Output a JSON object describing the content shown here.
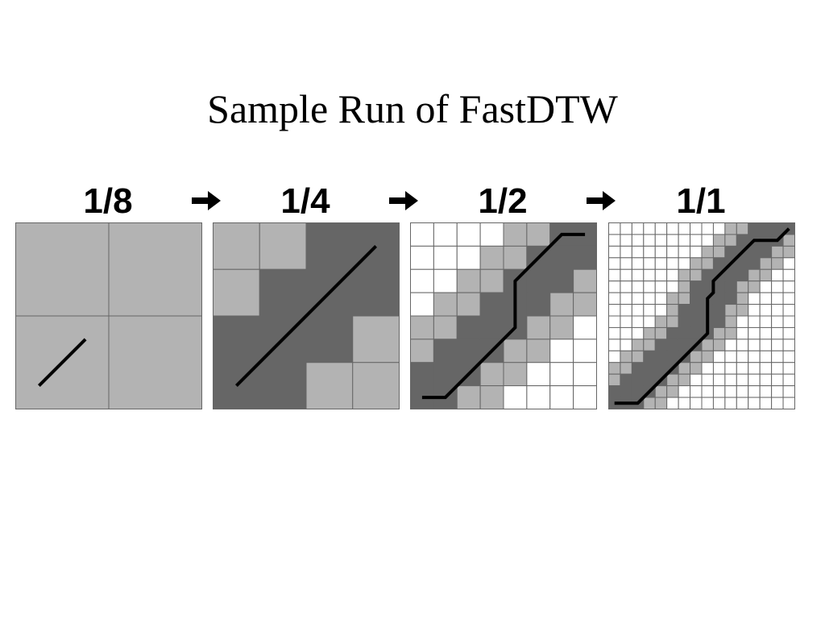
{
  "title": "Sample Run of FastDTW",
  "colors": {
    "background": "#ffffff",
    "grid_line": "#666666",
    "light_cell": "#b3b3b3",
    "dark_cell": "#666666",
    "empty_cell": "#ffffff",
    "path": "#000000"
  },
  "arrow_icon": "right-arrow-icon",
  "panels": [
    {
      "label": "1/8",
      "grid": 2,
      "cells": [
        "LL",
        "LL"
      ],
      "path": [
        [
          0.25,
          0.25
        ],
        [
          0.75,
          0.75
        ]
      ]
    },
    {
      "label": "1/4",
      "grid": 4,
      "cells": [
        "LLDD",
        "LDDD",
        "DDDL",
        "DDLL"
      ],
      "path": [
        [
          0.5,
          0.5
        ],
        [
          3.5,
          3.5
        ]
      ]
    },
    {
      "label": "1/2",
      "grid": 8,
      "cells": [
        "....LLDD",
        "...LLDDD",
        "..LLDDDL",
        ".LLDDDLL",
        "LLDDDLL.",
        "LDDDLL..",
        "DDDLL...",
        "DDLL...."
      ],
      "path": [
        [
          0.5,
          0.5
        ],
        [
          1.5,
          0.5
        ],
        [
          4.5,
          3.5
        ],
        [
          4.5,
          5.5
        ],
        [
          6.5,
          7.5
        ],
        [
          7.5,
          7.5
        ]
      ]
    },
    {
      "label": "1/1",
      "grid": 16,
      "cells": [
        "..........LLDDDD",
        ".........LLDDDDL",
        "........LLDDDDLL",
        ".......LLDDDDLL.",
        "......LLDDDDLL..",
        "......LDDDDLL...",
        ".....LLDDDDL....",
        ".....LDDDDLL....",
        "....LLDDDDL.....",
        "...LLDDDDLL.....",
        "..LLDDDDLL......",
        ".LLDDDDLL.......",
        "LLDDDDLL........",
        "LDDDDLL.........",
        "DDDDLL..........",
        "DDDLL..........."
      ],
      "path": [
        [
          0.5,
          0.5
        ],
        [
          2.5,
          0.5
        ],
        [
          8.5,
          6.5
        ],
        [
          8.5,
          9.5
        ],
        [
          9.0,
          10.0
        ],
        [
          9.0,
          11.0
        ],
        [
          12.5,
          14.5
        ],
        [
          14.5,
          14.5
        ],
        [
          15.5,
          15.5
        ]
      ]
    }
  ]
}
